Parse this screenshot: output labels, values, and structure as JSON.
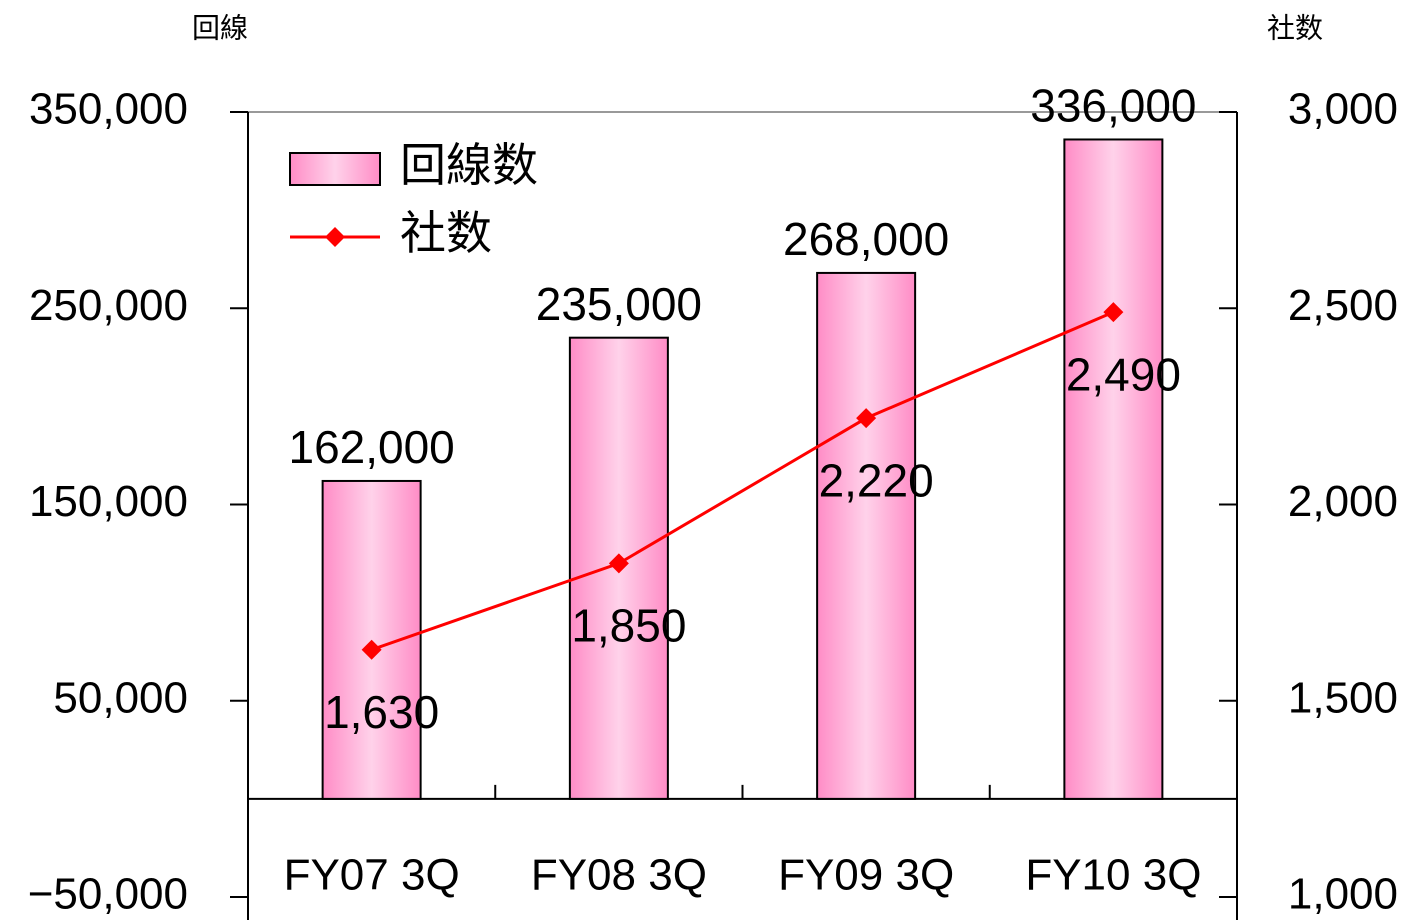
{
  "chart_data": {
    "type": "bar",
    "categories": [
      "FY07 3Q",
      "FY08 3Q",
      "FY09 3Q",
      "FY10 3Q"
    ],
    "y_axis_label": "回線",
    "y2_axis_label": "社数",
    "series": [
      {
        "name": "回線数",
        "type": "bar",
        "color": "#ff9fd0",
        "values": [
          162000,
          235000,
          268000,
          336000
        ],
        "value_labels": [
          "162,000",
          "235,000",
          "268,000",
          "336,000"
        ]
      },
      {
        "name": "社数",
        "type": "line",
        "axis": "y2",
        "color": "#ff0000",
        "values": [
          1630,
          1850,
          2220,
          2490
        ],
        "value_labels": [
          "1,630",
          "1,850",
          "2,220",
          "2,490"
        ]
      }
    ],
    "ylim": [
      -50000,
      350000
    ],
    "yticks": [
      {
        "value": -50000,
        "label": "−50,000"
      },
      {
        "value": 50000,
        "label": "50,000"
      },
      {
        "value": 150000,
        "label": "150,000"
      },
      {
        "value": 250000,
        "label": "250,000"
      },
      {
        "value": 350000,
        "label": "350,000"
      }
    ],
    "y2lim": [
      1000,
      3000
    ],
    "y2ticks": [
      {
        "value": 1000,
        "label": "1,000"
      },
      {
        "value": 1500,
        "label": "1,500"
      },
      {
        "value": 2000,
        "label": "2,000"
      },
      {
        "value": 2500,
        "label": "2,500"
      },
      {
        "value": 3000,
        "label": "3,000"
      }
    ],
    "legend": "upper left"
  }
}
